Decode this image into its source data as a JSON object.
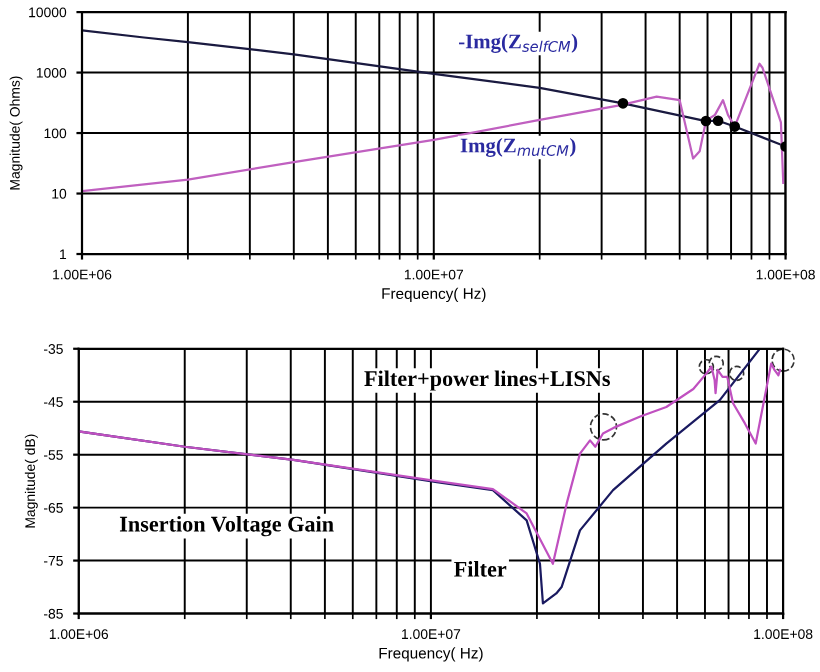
{
  "chart_data": [
    {
      "type": "line",
      "xlabel": "Frequency( Hz)",
      "ylabel": "Magnitude( Ohms)",
      "log": "xy",
      "xlim": [
        1000000,
        100000000
      ],
      "xticks": [
        {
          "value": 1000000,
          "label": "1.00E+06"
        },
        {
          "value": 10000000,
          "label": "1.00E+07"
        },
        {
          "value": 100000000,
          "label": "1.00E+08"
        }
      ],
      "ylim": [
        1,
        10000
      ],
      "yticks": [
        1,
        10,
        100,
        1000,
        10000
      ],
      "grid": true,
      "legend": false,
      "series": [
        {
          "color": "#1a1a40",
          "x": [
            1000000,
            1500000,
            2000000,
            4000000,
            10000000,
            20000000,
            34500000,
            59400000,
            64300000,
            71700000,
            100000000
          ],
          "values": [
            5000,
            3800,
            3200,
            2000,
            950,
            560,
            310,
            158,
            160,
            128,
            60
          ]
        },
        {
          "color": "#c060c0",
          "x": [
            1000000,
            2000000,
            4000000,
            10000000,
            20000000,
            34000000,
            43000000,
            50000000,
            54600000,
            57000000,
            59400000,
            63000000,
            66400000,
            68600000,
            71700000,
            84300000,
            86000000,
            97000000,
            98500000
          ],
          "values": [
            11,
            17,
            33,
            77,
            165,
            290,
            400,
            350,
            38,
            50,
            160,
            200,
            350,
            200,
            128,
            1400,
            1200,
            150,
            15
          ]
        },
        {
          "type": "scatter",
          "color": "#000000",
          "marker": "circle",
          "x": [
            34500000,
            59400000,
            64300000,
            71700000,
            100000000
          ],
          "values": [
            310,
            158,
            160,
            128,
            60
          ]
        }
      ],
      "annotations": [
        "-Img(Z$_{selfCM}$)",
        "Img(Z$_{mutCM}$)"
      ]
    },
    {
      "type": "line",
      "xlabel": "Frequency( Hz)",
      "ylabel": "Magnitude( dB)",
      "log": "x",
      "xlim": [
        1000000,
        100000000
      ],
      "xticks": [
        {
          "value": 1000000,
          "label": "1.00E+06"
        },
        {
          "value": 10000000,
          "label": "1.00E+07"
        },
        {
          "value": 100000000,
          "label": "1.00E+08"
        }
      ],
      "ylim": [
        -85,
        -35
      ],
      "yticks": [
        -35,
        -45,
        -55,
        -65,
        -75,
        -85
      ],
      "grid": true,
      "legend": false,
      "series": [
        {
          "color": "#1a1a60",
          "x": [
            1000000,
            2000000,
            4070000,
            10400000,
            15000000,
            18700000,
            20400000,
            20800000,
            22700000,
            23500000,
            26500000,
            32900000,
            46600000,
            66100000,
            85900000
          ],
          "values": [
            -50.6,
            -53.5,
            -56,
            -60.2,
            -61.7,
            -67.4,
            -75.6,
            -83.1,
            -81.2,
            -80,
            -69.3,
            -61.7,
            -52.9,
            -44.7,
            -35
          ]
        },
        {
          "color": "#c050c0",
          "x": [
            1000000,
            2000000,
            4070000,
            10400000,
            15000000,
            18700000,
            22200000,
            24300000,
            26500000,
            28300000,
            29300000,
            30800000,
            33600000,
            39300000,
            46600000,
            55600000,
            60500000,
            62600000,
            63900000,
            64300000,
            65200000,
            67300000,
            69400000,
            72100000,
            77900000,
            83600000,
            92500000,
            94500000,
            97000000,
            98000000
          ],
          "values": [
            -50.6,
            -53.5,
            -56,
            -60,
            -61.5,
            -66.1,
            -75.6,
            -64.2,
            -54.8,
            -52.3,
            -53.5,
            -51,
            -49.7,
            -47.8,
            -46,
            -42.6,
            -39.7,
            -38.4,
            -40.9,
            -43.4,
            -39,
            -40.3,
            -40.3,
            -45.3,
            -49.1,
            -52.9,
            -37.8,
            -39,
            -40,
            -39
          ]
        }
      ],
      "annotations": [
        "Filter+power lines+LISNs",
        "Insertion Voltage Gain",
        "Filter"
      ]
    }
  ]
}
